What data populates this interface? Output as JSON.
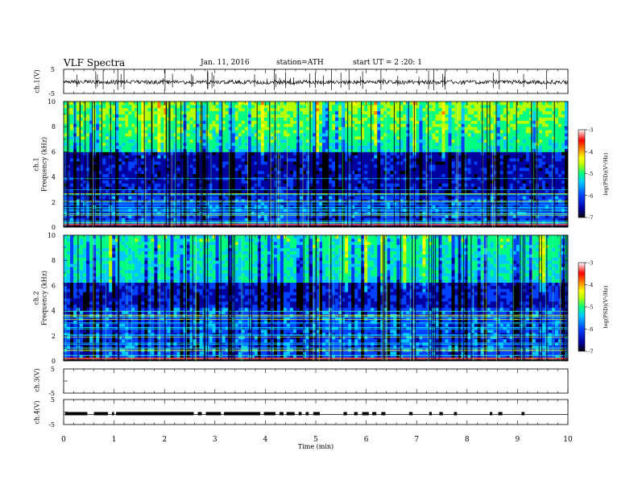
{
  "header": {
    "title": "VLF Spectra",
    "date": "Jan. 11, 2016",
    "station": "station=ATH",
    "start": "start UT = 2 :20: 1"
  },
  "chart_data": {
    "type": "heatmap",
    "x": {
      "label": "Time (min)",
      "range": [
        0,
        10
      ],
      "ticks": [
        "0",
        "1",
        "2",
        "3",
        "4",
        "5",
        "6",
        "7",
        "8",
        "9",
        "10"
      ]
    },
    "panels": [
      {
        "id": "ch1-waveform",
        "ylabel": "ch.1(V)",
        "range": [
          -5,
          5
        ],
        "ticks": [
          "5",
          "-5"
        ]
      },
      {
        "id": "ch1-spectrogram",
        "ylabel_lines": [
          "ch.1",
          "Frequency (kHz)"
        ],
        "range": [
          0,
          10
        ],
        "ticks": [
          "0",
          "2",
          "4",
          "6",
          "8",
          "10"
        ],
        "colorbar": {
          "label": "log(PSD)(V²/Hz)",
          "range": [
            -7,
            -3
          ],
          "ticks": [
            "-3",
            "-4",
            "-5",
            "-6",
            "-7"
          ]
        }
      },
      {
        "id": "ch2-spectrogram",
        "ylabel_lines": [
          "ch.2",
          "Frequency (kHz)"
        ],
        "range": [
          0,
          10
        ],
        "ticks": [
          "0",
          "2",
          "4",
          "6",
          "8",
          "10"
        ],
        "colorbar": {
          "label": "log(PSD)(V²/Hz)",
          "range": [
            -7,
            -3
          ],
          "ticks": [
            "-3",
            "-4",
            "-5",
            "-6",
            "-7"
          ]
        }
      },
      {
        "id": "ch3-waveform",
        "ylabel": "ch.3(V)",
        "range": [
          -5,
          5
        ],
        "ticks": [
          "5",
          "-5"
        ]
      },
      {
        "id": "ch4-waveform",
        "ylabel": "ch.4(V)",
        "range": [
          -5,
          5
        ],
        "ticks": [
          "5",
          "-5"
        ]
      }
    ]
  },
  "colors": {
    "colormap": [
      "#000000",
      "#0000a0",
      "#0040ff",
      "#00c8ff",
      "#00ff80",
      "#b4ff00",
      "#ffff00",
      "#ff8000",
      "#ff0000",
      "#ffffff"
    ]
  }
}
